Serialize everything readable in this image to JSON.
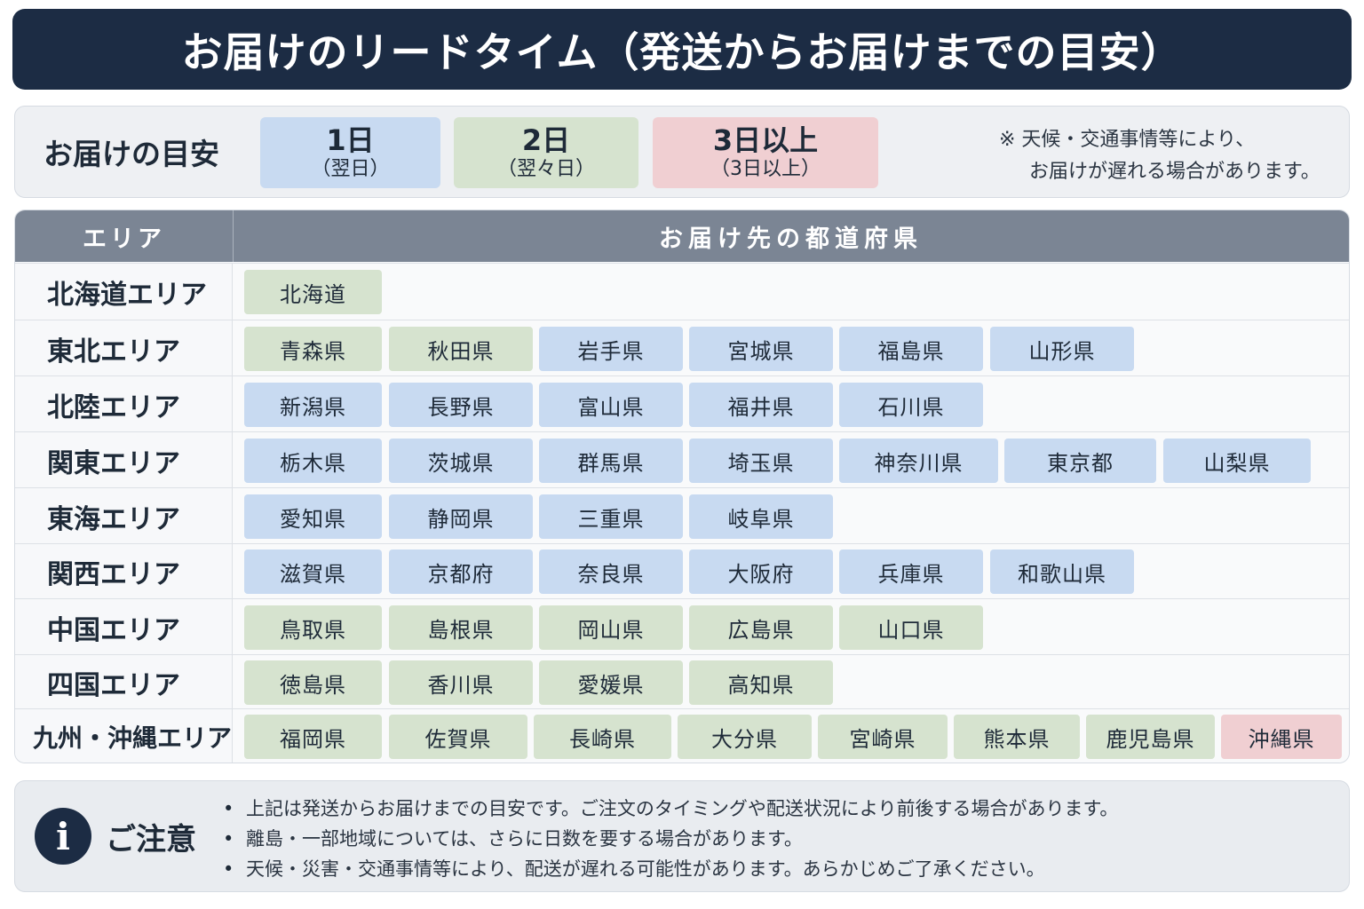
{
  "title": "お届けのリードタイム（発送からお届けまでの目安）",
  "legend": {
    "label": "お届けの目安",
    "items": [
      {
        "big": "1日",
        "small": "（翌日）",
        "color": "#c8daf1"
      },
      {
        "big": "2日",
        "small": "（翌々日）",
        "color": "#d6e3cf"
      },
      {
        "big": "3日以上",
        "small": "（3日以上）",
        "color": "#f0cfd2"
      }
    ],
    "note_line1": "※ 天候・交通事情等により、",
    "note_line2": "お届けが遅れる場合があります。"
  },
  "table": {
    "header_area": "エリア",
    "header_pref": "お届け先の都道府県",
    "rows": [
      {
        "area": "北海道エリア",
        "prefs": [
          {
            "name": "北海道",
            "days": 2
          }
        ]
      },
      {
        "area": "東北エリア",
        "prefs": [
          {
            "name": "青森県",
            "days": 2
          },
          {
            "name": "秋田県",
            "days": 2
          },
          {
            "name": "岩手県",
            "days": 1
          },
          {
            "name": "宮城県",
            "days": 1
          },
          {
            "name": "福島県",
            "days": 1
          },
          {
            "name": "山形県",
            "days": 1
          }
        ]
      },
      {
        "area": "北陸エリア",
        "prefs": [
          {
            "name": "新潟県",
            "days": 1
          },
          {
            "name": "長野県",
            "days": 1
          },
          {
            "name": "富山県",
            "days": 1
          },
          {
            "name": "福井県",
            "days": 1
          },
          {
            "name": "石川県",
            "days": 1
          }
        ]
      },
      {
        "area": "関東エリア",
        "prefs": [
          {
            "name": "栃木県",
            "days": 1
          },
          {
            "name": "茨城県",
            "days": 1
          },
          {
            "name": "群馬県",
            "days": 1
          },
          {
            "name": "埼玉県",
            "days": 1
          },
          {
            "name": "神奈川県",
            "days": 1
          },
          {
            "name": "東京都",
            "days": 1
          },
          {
            "name": "山梨県",
            "days": 1
          }
        ]
      },
      {
        "area": "東海エリア",
        "prefs": [
          {
            "name": "愛知県",
            "days": 1
          },
          {
            "name": "静岡県",
            "days": 1
          },
          {
            "name": "三重県",
            "days": 1
          },
          {
            "name": "岐阜県",
            "days": 1
          }
        ]
      },
      {
        "area": "関西エリア",
        "prefs": [
          {
            "name": "滋賀県",
            "days": 1
          },
          {
            "name": "京都府",
            "days": 1
          },
          {
            "name": "奈良県",
            "days": 1
          },
          {
            "name": "大阪府",
            "days": 1
          },
          {
            "name": "兵庫県",
            "days": 1
          },
          {
            "name": "和歌山県",
            "days": 1
          }
        ]
      },
      {
        "area": "中国エリア",
        "prefs": [
          {
            "name": "鳥取県",
            "days": 2
          },
          {
            "name": "島根県",
            "days": 2
          },
          {
            "name": "岡山県",
            "days": 2
          },
          {
            "name": "広島県",
            "days": 2
          },
          {
            "name": "山口県",
            "days": 2
          }
        ]
      },
      {
        "area": "四国エリア",
        "prefs": [
          {
            "name": "徳島県",
            "days": 2
          },
          {
            "name": "香川県",
            "days": 2
          },
          {
            "name": "愛媛県",
            "days": 2
          },
          {
            "name": "高知県",
            "days": 2
          }
        ]
      },
      {
        "area": "九州・沖縄エリア",
        "prefs": [
          {
            "name": "福岡県",
            "days": 2
          },
          {
            "name": "佐賀県",
            "days": 2
          },
          {
            "name": "長崎県",
            "days": 2
          },
          {
            "name": "大分県",
            "days": 2
          },
          {
            "name": "宮崎県",
            "days": 2
          },
          {
            "name": "熊本県",
            "days": 2
          },
          {
            "name": "鹿児島県",
            "days": 2
          },
          {
            "name": "沖縄県",
            "days": 3
          }
        ]
      }
    ]
  },
  "notice": {
    "icon": "info-icon",
    "icon_letter": "i",
    "title": "ご注意",
    "items": [
      "上記は発送からお届けまでの目安です。ご注文のタイミングや配送状況により前後する場合があります。",
      "離島・一部地域については、さらに日数を要する場合があります。",
      "天候・災害・交通事情等により、配送が遅れる可能性があります。あらかじめご了承ください。"
    ]
  }
}
